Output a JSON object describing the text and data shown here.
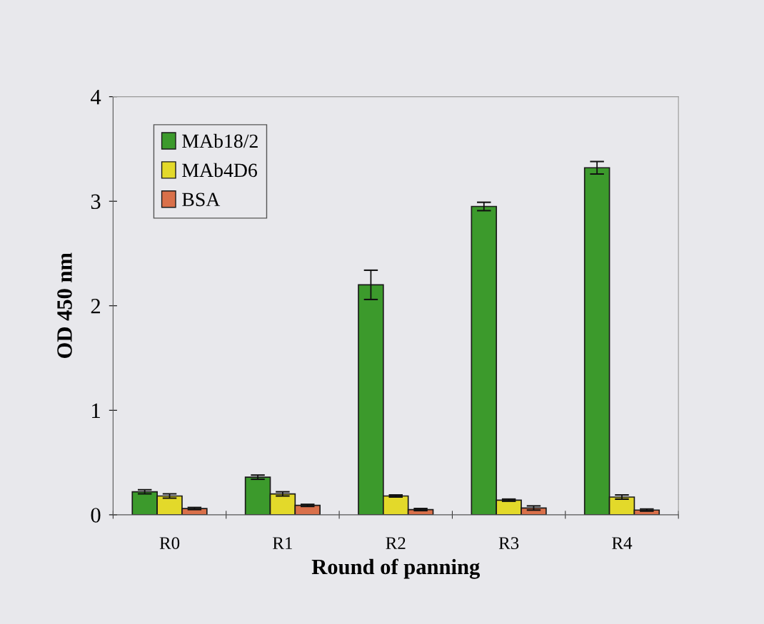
{
  "chart_data": {
    "type": "bar",
    "xlabel": "Round of panning",
    "ylabel": "OD 450 nm",
    "categories": [
      "R0",
      "R1",
      "R2",
      "R3",
      "R4"
    ],
    "series": [
      {
        "name": "MAb18/2",
        "color": "#3c9a2c",
        "values": [
          0.22,
          0.36,
          2.2,
          2.95,
          3.32
        ],
        "errors": [
          0.02,
          0.02,
          0.14,
          0.04,
          0.06
        ]
      },
      {
        "name": "MAb4D6",
        "color": "#e3d92a",
        "values": [
          0.18,
          0.2,
          0.18,
          0.14,
          0.17
        ],
        "errors": [
          0.02,
          0.02,
          0.01,
          0.01,
          0.02
        ]
      },
      {
        "name": "BSA",
        "color": "#d9704a",
        "values": [
          0.06,
          0.09,
          0.05,
          0.065,
          0.045
        ],
        "errors": [
          0.01,
          0.01,
          0.01,
          0.02,
          0.01
        ]
      }
    ],
    "ylim": [
      0,
      4
    ],
    "yticks": [
      0,
      1,
      2,
      3,
      4
    ],
    "grid": false,
    "legend": "top left"
  }
}
